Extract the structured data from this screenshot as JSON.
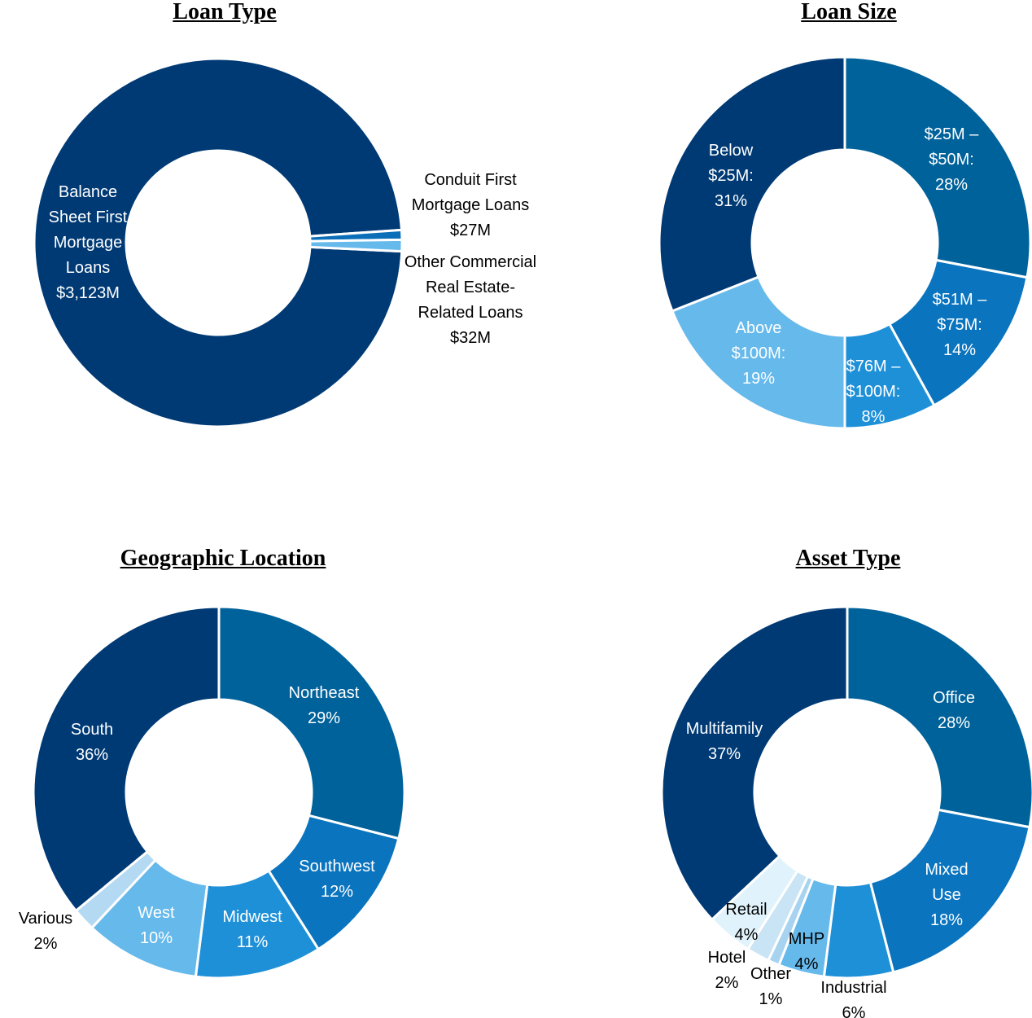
{
  "chart_data": [
    {
      "type": "donut",
      "title": "Loan Type",
      "categories": [
        "Balance Sheet First Mortgage Loans",
        "Conduit First Mortgage Loans",
        "Other Commercial Real Estate-Related Loans"
      ],
      "values": [
        3123,
        27,
        32
      ],
      "value_labels": [
        "$3,123M",
        "$27M",
        "$32M"
      ],
      "colors": [
        "#003a75",
        "#0a6fb8",
        "#66b9eb"
      ]
    },
    {
      "type": "donut",
      "title": "Loan Size",
      "categories": [
        "$25M – $50M:",
        "$51M – $75M:",
        "$76M – $100M:",
        "Above $100M:",
        "Below $25M:"
      ],
      "values": [
        28,
        14,
        8,
        19,
        31
      ],
      "value_labels": [
        "28%",
        "14%",
        "8%",
        "19%",
        "31%"
      ],
      "colors": [
        "#00629b",
        "#0a74bf",
        "#1e90d8",
        "#66b9eb",
        "#003a75"
      ]
    },
    {
      "type": "donut",
      "title": "Geographic Location",
      "categories": [
        "Northeast",
        "Southwest",
        "Midwest",
        "West",
        "Various",
        "South"
      ],
      "values": [
        29,
        12,
        11,
        10,
        2,
        36
      ],
      "value_labels": [
        "29%",
        "12%",
        "11%",
        "10%",
        "2%",
        "36%"
      ],
      "colors": [
        "#00629b",
        "#0a74bf",
        "#1e90d8",
        "#66b9eb",
        "#b4d9f2",
        "#003a75"
      ]
    },
    {
      "type": "donut",
      "title": "Asset Type",
      "categories": [
        "Office",
        "Mixed Use",
        "Industrial",
        "MHP",
        "Other",
        "Hotel",
        "Retail",
        "Multifamily"
      ],
      "values": [
        28,
        18,
        6,
        4,
        1,
        2,
        4,
        37
      ],
      "value_labels": [
        "28%",
        "18%",
        "6%",
        "4%",
        "1%",
        "2%",
        "4%",
        "37%"
      ],
      "colors": [
        "#00629b",
        "#0a74bf",
        "#1e90d8",
        "#66b9eb",
        "#a8d3f0",
        "#c9e4f5",
        "#e0f2fb",
        "#003a75"
      ]
    }
  ]
}
